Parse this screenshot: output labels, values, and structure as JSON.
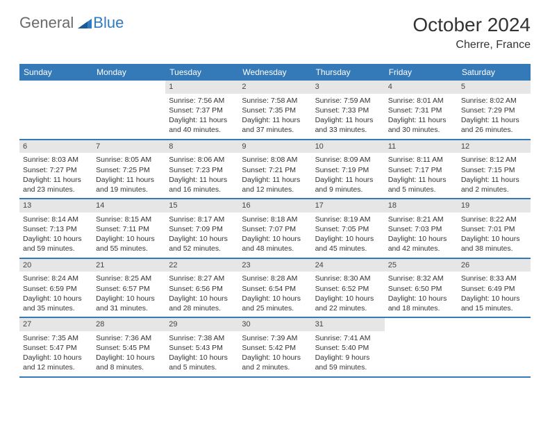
{
  "logo": {
    "general": "General",
    "blue": "Blue"
  },
  "title": "October 2024",
  "location": "Cherre, France",
  "colors": {
    "header_bg": "#357ab8",
    "daynum_bg": "#e6e6e6",
    "rule": "#357ab8"
  },
  "days_of_week": [
    "Sunday",
    "Monday",
    "Tuesday",
    "Wednesday",
    "Thursday",
    "Friday",
    "Saturday"
  ],
  "weeks": [
    [
      null,
      null,
      {
        "n": "1",
        "sunrise": "7:56 AM",
        "sunset": "7:37 PM",
        "daylight": "11 hours and 40 minutes."
      },
      {
        "n": "2",
        "sunrise": "7:58 AM",
        "sunset": "7:35 PM",
        "daylight": "11 hours and 37 minutes."
      },
      {
        "n": "3",
        "sunrise": "7:59 AM",
        "sunset": "7:33 PM",
        "daylight": "11 hours and 33 minutes."
      },
      {
        "n": "4",
        "sunrise": "8:01 AM",
        "sunset": "7:31 PM",
        "daylight": "11 hours and 30 minutes."
      },
      {
        "n": "5",
        "sunrise": "8:02 AM",
        "sunset": "7:29 PM",
        "daylight": "11 hours and 26 minutes."
      }
    ],
    [
      {
        "n": "6",
        "sunrise": "8:03 AM",
        "sunset": "7:27 PM",
        "daylight": "11 hours and 23 minutes."
      },
      {
        "n": "7",
        "sunrise": "8:05 AM",
        "sunset": "7:25 PM",
        "daylight": "11 hours and 19 minutes."
      },
      {
        "n": "8",
        "sunrise": "8:06 AM",
        "sunset": "7:23 PM",
        "daylight": "11 hours and 16 minutes."
      },
      {
        "n": "9",
        "sunrise": "8:08 AM",
        "sunset": "7:21 PM",
        "daylight": "11 hours and 12 minutes."
      },
      {
        "n": "10",
        "sunrise": "8:09 AM",
        "sunset": "7:19 PM",
        "daylight": "11 hours and 9 minutes."
      },
      {
        "n": "11",
        "sunrise": "8:11 AM",
        "sunset": "7:17 PM",
        "daylight": "11 hours and 5 minutes."
      },
      {
        "n": "12",
        "sunrise": "8:12 AM",
        "sunset": "7:15 PM",
        "daylight": "11 hours and 2 minutes."
      }
    ],
    [
      {
        "n": "13",
        "sunrise": "8:14 AM",
        "sunset": "7:13 PM",
        "daylight": "10 hours and 59 minutes."
      },
      {
        "n": "14",
        "sunrise": "8:15 AM",
        "sunset": "7:11 PM",
        "daylight": "10 hours and 55 minutes."
      },
      {
        "n": "15",
        "sunrise": "8:17 AM",
        "sunset": "7:09 PM",
        "daylight": "10 hours and 52 minutes."
      },
      {
        "n": "16",
        "sunrise": "8:18 AM",
        "sunset": "7:07 PM",
        "daylight": "10 hours and 48 minutes."
      },
      {
        "n": "17",
        "sunrise": "8:19 AM",
        "sunset": "7:05 PM",
        "daylight": "10 hours and 45 minutes."
      },
      {
        "n": "18",
        "sunrise": "8:21 AM",
        "sunset": "7:03 PM",
        "daylight": "10 hours and 42 minutes."
      },
      {
        "n": "19",
        "sunrise": "8:22 AM",
        "sunset": "7:01 PM",
        "daylight": "10 hours and 38 minutes."
      }
    ],
    [
      {
        "n": "20",
        "sunrise": "8:24 AM",
        "sunset": "6:59 PM",
        "daylight": "10 hours and 35 minutes."
      },
      {
        "n": "21",
        "sunrise": "8:25 AM",
        "sunset": "6:57 PM",
        "daylight": "10 hours and 31 minutes."
      },
      {
        "n": "22",
        "sunrise": "8:27 AM",
        "sunset": "6:56 PM",
        "daylight": "10 hours and 28 minutes."
      },
      {
        "n": "23",
        "sunrise": "8:28 AM",
        "sunset": "6:54 PM",
        "daylight": "10 hours and 25 minutes."
      },
      {
        "n": "24",
        "sunrise": "8:30 AM",
        "sunset": "6:52 PM",
        "daylight": "10 hours and 22 minutes."
      },
      {
        "n": "25",
        "sunrise": "8:32 AM",
        "sunset": "6:50 PM",
        "daylight": "10 hours and 18 minutes."
      },
      {
        "n": "26",
        "sunrise": "8:33 AM",
        "sunset": "6:49 PM",
        "daylight": "10 hours and 15 minutes."
      }
    ],
    [
      {
        "n": "27",
        "sunrise": "7:35 AM",
        "sunset": "5:47 PM",
        "daylight": "10 hours and 12 minutes."
      },
      {
        "n": "28",
        "sunrise": "7:36 AM",
        "sunset": "5:45 PM",
        "daylight": "10 hours and 8 minutes."
      },
      {
        "n": "29",
        "sunrise": "7:38 AM",
        "sunset": "5:43 PM",
        "daylight": "10 hours and 5 minutes."
      },
      {
        "n": "30",
        "sunrise": "7:39 AM",
        "sunset": "5:42 PM",
        "daylight": "10 hours and 2 minutes."
      },
      {
        "n": "31",
        "sunrise": "7:41 AM",
        "sunset": "5:40 PM",
        "daylight": "9 hours and 59 minutes."
      },
      null,
      null
    ]
  ]
}
